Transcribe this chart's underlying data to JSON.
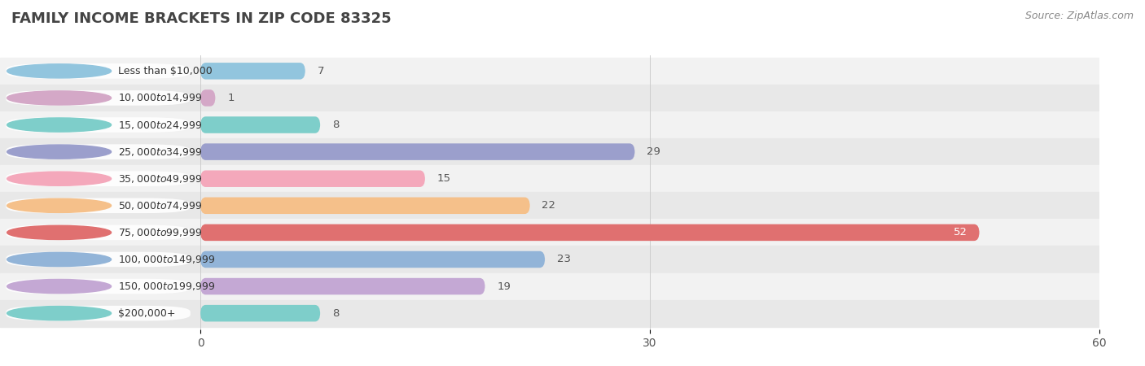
{
  "title": "FAMILY INCOME BRACKETS IN ZIP CODE 83325",
  "source": "Source: ZipAtlas.com",
  "categories": [
    "Less than $10,000",
    "$10,000 to $14,999",
    "$15,000 to $24,999",
    "$25,000 to $34,999",
    "$35,000 to $49,999",
    "$50,000 to $74,999",
    "$75,000 to $99,999",
    "$100,000 to $149,999",
    "$150,000 to $199,999",
    "$200,000+"
  ],
  "values": [
    7,
    1,
    8,
    29,
    15,
    22,
    52,
    23,
    19,
    8
  ],
  "bar_colors": [
    "#92C5DE",
    "#D4A8C7",
    "#7ECECA",
    "#9B9FCC",
    "#F4A8BB",
    "#F5C08A",
    "#E07070",
    "#92B4D8",
    "#C4A8D4",
    "#7ECECA"
  ],
  "xlim": [
    0,
    60
  ],
  "xticks": [
    0,
    30,
    60
  ],
  "background_color": "#ffffff",
  "title_fontsize": 13,
  "value_fontsize": 9.5,
  "label_fontsize": 9,
  "bar_height": 0.62
}
